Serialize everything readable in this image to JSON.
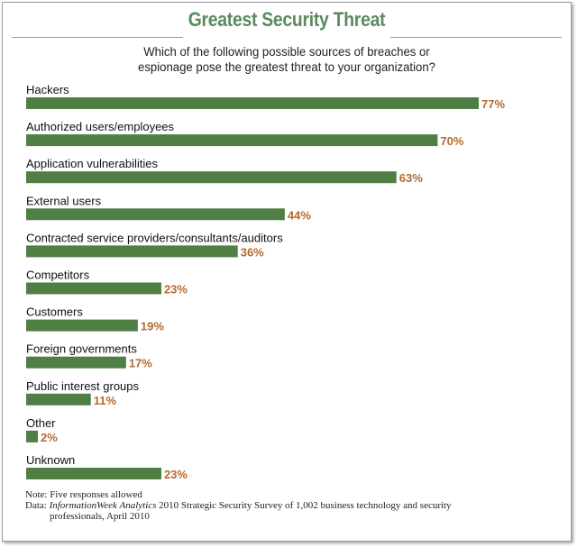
{
  "chart_data": {
    "type": "bar",
    "orientation": "horizontal",
    "title": "Greatest Security Threat",
    "subtitle_lines": [
      "Which of the following possible sources of breaches or",
      "espionage pose the greatest threat to your organization?"
    ],
    "categories": [
      "Hackers",
      "Authorized users/employees",
      "Application vulnerabilities",
      "External users",
      "Contracted service providers/consultants/auditors",
      "Competitors",
      "Customers",
      "Foreign governments",
      "Public interest groups",
      "Other",
      "Unknown"
    ],
    "values": [
      77,
      70,
      63,
      44,
      36,
      23,
      19,
      17,
      11,
      2,
      23
    ],
    "value_labels": [
      "77%",
      "70%",
      "63%",
      "44%",
      "36%",
      "23%",
      "19%",
      "17%",
      "11%",
      "2%",
      "23%"
    ],
    "xlim": [
      0,
      100
    ],
    "grid": false,
    "legend": "none",
    "colors": {
      "bar": "#4f7f44",
      "value_text": "#b46a2c",
      "title": "#5b8a5c"
    }
  },
  "notes": {
    "note": "Note: Five responses allowed",
    "data_prefix": "Data: ",
    "data_source_italic": "InformationWeek Analytics",
    "data_rest_line1": " 2010 Strategic Security Survey of 1,002 business technology and security",
    "data_line2": "professionals, April 2010"
  }
}
